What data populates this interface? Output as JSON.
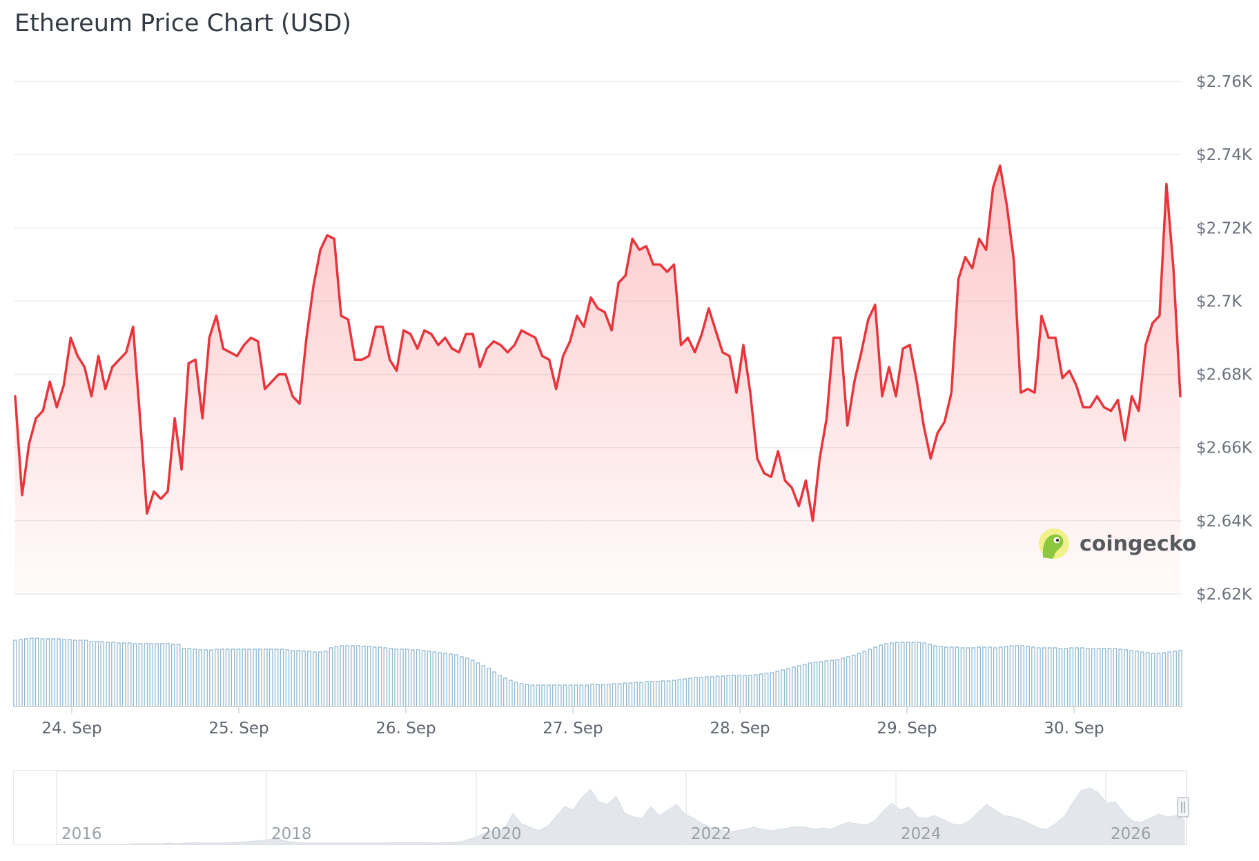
{
  "chart_data": {
    "type": "line",
    "title": "Ethereum Price Chart (USD)",
    "brand": "coingecko",
    "brand_icon": "gecko-logo-icon",
    "colors": {
      "line": "#e8343c",
      "volume": "#8fb8d2",
      "navigator": "#e3e7ec"
    },
    "y_ticks": [
      "$2.62K",
      "$2.64K",
      "$2.66K",
      "$2.68K",
      "$2.7K",
      "$2.72K",
      "$2.74K",
      "$2.76K"
    ],
    "ylim": [
      2620,
      2760
    ],
    "x_ticks": [
      "24. Sep",
      "25. Sep",
      "26. Sep",
      "27. Sep",
      "28. Sep",
      "29. Sep",
      "30. Sep"
    ],
    "xlim": [
      "2025-09-23 16:00",
      "2025-09-30 18:00"
    ],
    "grid": true,
    "navigator_ticks": [
      "2016",
      "2018",
      "2020",
      "2022",
      "2024",
      "2026"
    ],
    "series": [
      {
        "values": [
          2674,
          2647,
          2661,
          2668,
          2670,
          2678,
          2671,
          2677,
          2690,
          2685,
          2682,
          2674,
          2685,
          2676,
          2682,
          2684,
          2686,
          2693,
          2668,
          2642,
          2648,
          2646,
          2648,
          2668,
          2654,
          2683,
          2684,
          2668,
          2690,
          2696,
          2687,
          2686,
          2685,
          2688,
          2690,
          2689,
          2676,
          2678,
          2680,
          2680,
          2674,
          2672,
          2690,
          2704,
          2714,
          2718,
          2717,
          2696,
          2695,
          2684,
          2684,
          2685,
          2693,
          2693,
          2684,
          2681,
          2692,
          2691,
          2687,
          2692,
          2691,
          2688,
          2690,
          2687,
          2686,
          2691,
          2691,
          2682,
          2687,
          2689,
          2688,
          2686,
          2688,
          2692,
          2691,
          2690,
          2685,
          2684,
          2676,
          2685,
          2689,
          2696,
          2693,
          2701,
          2698,
          2697,
          2692,
          2705,
          2707,
          2717,
          2714,
          2715,
          2710,
          2710,
          2708,
          2710,
          2688,
          2690,
          2686,
          2691,
          2698,
          2692,
          2686,
          2685,
          2675,
          2688,
          2675,
          2657,
          2653,
          2652,
          2659,
          2651,
          2649,
          2644,
          2651,
          2640,
          2657,
          2668,
          2690,
          2690,
          2666,
          2678,
          2686,
          2695,
          2699,
          2674,
          2682,
          2674,
          2687,
          2688,
          2678,
          2666,
          2657,
          2664,
          2667,
          2675,
          2706,
          2712,
          2709,
          2717,
          2714,
          2731,
          2737,
          2726,
          2711,
          2675,
          2676,
          2675,
          2696,
          2690,
          2690,
          2679,
          2681,
          2677,
          2671,
          2671,
          2674,
          2671,
          2670,
          2673,
          2662,
          2674,
          2670,
          2688,
          2694,
          2696,
          2732,
          2709,
          2674
        ]
      }
    ],
    "volume": [
      96,
      97,
      98,
      99,
      99,
      98,
      98,
      98,
      98,
      97,
      97,
      96,
      96,
      96,
      94,
      94,
      94,
      93,
      93,
      92,
      92,
      92,
      91,
      91,
      91,
      91,
      91,
      91,
      91,
      90,
      90,
      84,
      84,
      83,
      82,
      82,
      82,
      83,
      83,
      83,
      83,
      83,
      83,
      83,
      83,
      83,
      83,
      83,
      83,
      83,
      82,
      81,
      81,
      80,
      80,
      79,
      79,
      80,
      85,
      87,
      88,
      88,
      88,
      88,
      87,
      87,
      86,
      86,
      85,
      84,
      83,
      83,
      83,
      82,
      82,
      81,
      80,
      79,
      78,
      77,
      76,
      75,
      72,
      70,
      67,
      63,
      59,
      55,
      50,
      45,
      41,
      38,
      35,
      33,
      32,
      31,
      31,
      31,
      31,
      31,
      31,
      31,
      31,
      31,
      31,
      31,
      32,
      32,
      32,
      32,
      33,
      33,
      34,
      34,
      35,
      35,
      36,
      36,
      36,
      37,
      37,
      38,
      39,
      40,
      41,
      42,
      42,
      43,
      43,
      44,
      44,
      45,
      45,
      45,
      45,
      45,
      46,
      47,
      48,
      49,
      51,
      53,
      55,
      57,
      59,
      61,
      63,
      64,
      65,
      66,
      67,
      68,
      70,
      72,
      74,
      77,
      80,
      83,
      86,
      89,
      91,
      92,
      93,
      93,
      93,
      93,
      93,
      92,
      90,
      88,
      87,
      86,
      86,
      86,
      85,
      85,
      85,
      86,
      86,
      86,
      85,
      86,
      87,
      88,
      88,
      88,
      87,
      86,
      85,
      85,
      85,
      85,
      84,
      84,
      85,
      85,
      85,
      84,
      84,
      84,
      84,
      84,
      84,
      83,
      82,
      81,
      80,
      79,
      78,
      77,
      77,
      78,
      79,
      80,
      81
    ]
  }
}
